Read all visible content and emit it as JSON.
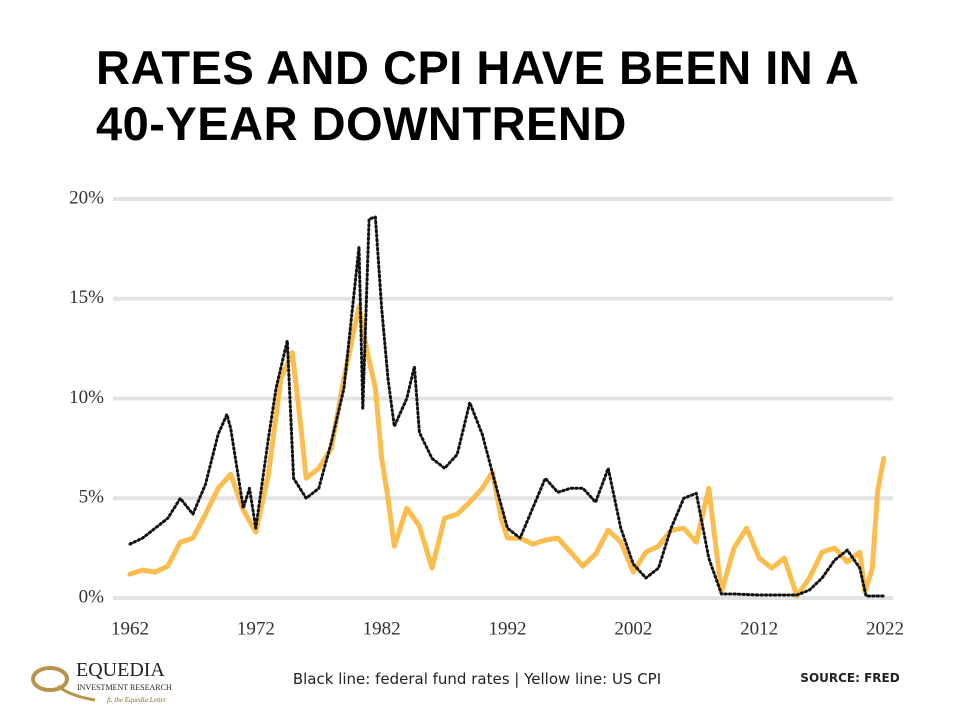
{
  "chart_data": {
    "type": "line",
    "title": "RATES AND CPI HAVE BEEN IN A 40-YEAR DOWNTREND",
    "caption": "Black line: federal fund rates | Yellow line: US CPI",
    "source": "SOURCE:  FRED",
    "xlim": [
      1962,
      2022
    ],
    "xticks": [
      1962,
      1972,
      1982,
      1992,
      2002,
      2012,
      2022
    ],
    "ylim": [
      0,
      20
    ],
    "yticks": [
      {
        "value": 0,
        "label": "0%"
      },
      {
        "value": 5,
        "label": "5%"
      },
      {
        "value": 10,
        "label": "10%"
      },
      {
        "value": 15,
        "label": "15%"
      },
      {
        "value": 20,
        "label": "20%"
      }
    ],
    "grid": true,
    "series": [
      {
        "name": "US CPI",
        "color": "#fbbd4e",
        "style": "solid",
        "x": [
          1962,
          1963,
          1964,
          1965,
          1966,
          1967,
          1968,
          1969,
          1970,
          1971,
          1972,
          1973,
          1974,
          1974.9,
          1975.5,
          1976,
          1977,
          1978,
          1979,
          1980.2,
          1980.8,
          1981.5,
          1982,
          1982.5,
          1983,
          1984,
          1985,
          1986,
          1987,
          1988,
          1989,
          1990,
          1990.8,
          1991.5,
          1992,
          1993,
          1994,
          1995,
          1996,
          1997,
          1998,
          1999,
          2000,
          2001,
          2002,
          2003,
          2004,
          2005,
          2006,
          2007,
          2008,
          2009,
          2010,
          2011,
          2012,
          2013,
          2014,
          2015,
          2016,
          2017,
          2018,
          2019,
          2020,
          2020.4,
          2021,
          2021.4,
          2021.9
        ],
        "values": [
          1.2,
          1.4,
          1.3,
          1.6,
          2.8,
          3.0,
          4.2,
          5.5,
          6.2,
          4.4,
          3.3,
          6.2,
          11.0,
          12.3,
          9.0,
          6.0,
          6.5,
          7.5,
          11.0,
          14.6,
          12.5,
          10.5,
          7.0,
          5.0,
          2.6,
          4.5,
          3.6,
          1.5,
          4.0,
          4.2,
          4.8,
          5.5,
          6.3,
          4.0,
          3.0,
          3.0,
          2.7,
          2.9,
          3.0,
          2.3,
          1.6,
          2.2,
          3.4,
          2.8,
          1.3,
          2.3,
          2.6,
          3.4,
          3.5,
          2.8,
          5.5,
          0.3,
          2.5,
          3.5,
          2.0,
          1.5,
          2.0,
          0.1,
          1.0,
          2.3,
          2.5,
          1.8,
          2.3,
          0.3,
          1.5,
          5.3,
          7.0
        ]
      },
      {
        "name": "federal fund rates",
        "color": "#111111",
        "style": "dotted",
        "x": [
          1962,
          1963,
          1964,
          1965,
          1966,
          1967,
          1968,
          1969,
          1969.7,
          1970,
          1971,
          1971.5,
          1972,
          1973,
          1973.6,
          1974.5,
          1975,
          1976,
          1977,
          1978,
          1979,
          1980.2,
          1980.5,
          1981,
          1981.5,
          1982,
          1982.5,
          1983,
          1984,
          1984.6,
          1985,
          1986,
          1987,
          1988,
          1989,
          1990,
          1991,
          1992,
          1993,
          1994,
          1995,
          1996,
          1997,
          1998,
          1999,
          2000,
          2001,
          2002,
          2003,
          2004,
          2005,
          2006,
          2007,
          2008,
          2009,
          2010,
          2012,
          2015,
          2016,
          2017,
          2018,
          2019,
          2020,
          2020.5,
          2022
        ],
        "values": [
          2.7,
          3.0,
          3.5,
          4.0,
          5.0,
          4.2,
          5.7,
          8.2,
          9.2,
          8.5,
          4.5,
          5.5,
          3.5,
          8.0,
          10.5,
          12.9,
          6.0,
          5.0,
          5.5,
          7.8,
          10.5,
          17.6,
          9.5,
          19.0,
          19.1,
          14.5,
          11.0,
          8.6,
          10.0,
          11.6,
          8.3,
          7.0,
          6.5,
          7.2,
          9.8,
          8.2,
          5.8,
          3.5,
          3.0,
          4.5,
          6.0,
          5.3,
          5.5,
          5.5,
          4.8,
          6.5,
          3.5,
          1.7,
          1.0,
          1.5,
          3.5,
          5.0,
          5.25,
          2.0,
          0.2,
          0.2,
          0.15,
          0.15,
          0.4,
          1.0,
          1.9,
          2.4,
          1.5,
          0.1,
          0.1
        ]
      }
    ]
  },
  "logo": {
    "name": "EQUEDIA",
    "line2": "INVESTMENT RESEARCH",
    "line3": "ft. the Equedia Letter"
  }
}
